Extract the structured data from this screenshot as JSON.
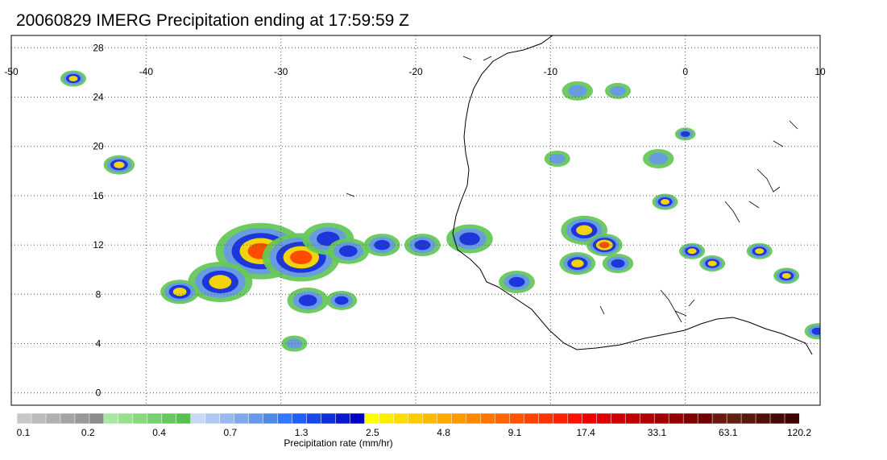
{
  "title": "20060829 IMERG Precipitation ending at 17:59:59 Z",
  "map": {
    "lon_range": [
      -50,
      10
    ],
    "lat_range": [
      -1,
      29
    ],
    "lon_ticks": [
      "-50",
      "-40",
      "-30",
      "-20",
      "-10",
      "0",
      "10"
    ],
    "lat_ticks": [
      "28",
      "24",
      "20",
      "16",
      "12",
      "8",
      "4",
      "0"
    ],
    "grid_style": "dotted",
    "coastline_color": "#000000",
    "rain_cells": [
      {
        "lon": -45.4,
        "lat": 25.5,
        "intensity": 4,
        "size": 1
      },
      {
        "lon": -42.0,
        "lat": 18.5,
        "intensity": 4,
        "size": 1.2
      },
      {
        "lon": -31.5,
        "lat": 11.5,
        "intensity": 5,
        "size": 3.5
      },
      {
        "lon": -28.5,
        "lat": 11.0,
        "intensity": 5,
        "size": 3
      },
      {
        "lon": -34.5,
        "lat": 9.0,
        "intensity": 4,
        "size": 2.5
      },
      {
        "lon": -37.5,
        "lat": 8.2,
        "intensity": 4,
        "size": 1.5
      },
      {
        "lon": -26.5,
        "lat": 12.5,
        "intensity": 3,
        "size": 2
      },
      {
        "lon": -25.0,
        "lat": 11.5,
        "intensity": 3,
        "size": 1.6
      },
      {
        "lon": -22.5,
        "lat": 12.0,
        "intensity": 3,
        "size": 1.4
      },
      {
        "lon": -19.5,
        "lat": 12.0,
        "intensity": 3,
        "size": 1.4
      },
      {
        "lon": -16.0,
        "lat": 12.5,
        "intensity": 3,
        "size": 1.8
      },
      {
        "lon": -28.0,
        "lat": 7.5,
        "intensity": 3,
        "size": 1.6
      },
      {
        "lon": -25.5,
        "lat": 7.5,
        "intensity": 3,
        "size": 1.2
      },
      {
        "lon": -29.0,
        "lat": 4.0,
        "intensity": 2,
        "size": 1.0
      },
      {
        "lon": -12.5,
        "lat": 9.0,
        "intensity": 3,
        "size": 1.4
      },
      {
        "lon": -7.5,
        "lat": 13.2,
        "intensity": 4,
        "size": 1.8
      },
      {
        "lon": -6.0,
        "lat": 12.0,
        "intensity": 5,
        "size": 1.4
      },
      {
        "lon": -8.0,
        "lat": 10.5,
        "intensity": 4,
        "size": 1.4
      },
      {
        "lon": -5.0,
        "lat": 10.5,
        "intensity": 3,
        "size": 1.2
      },
      {
        "lon": -1.5,
        "lat": 15.5,
        "intensity": 4,
        "size": 1.0
      },
      {
        "lon": 0.5,
        "lat": 11.5,
        "intensity": 4,
        "size": 1.0
      },
      {
        "lon": 2.0,
        "lat": 10.5,
        "intensity": 4,
        "size": 1.0
      },
      {
        "lon": 5.5,
        "lat": 11.5,
        "intensity": 4,
        "size": 1.0
      },
      {
        "lon": 7.5,
        "lat": 9.5,
        "intensity": 4,
        "size": 1.0
      },
      {
        "lon": 9.8,
        "lat": 5.0,
        "intensity": 3,
        "size": 1.0
      },
      {
        "lon": -9.5,
        "lat": 19.0,
        "intensity": 2,
        "size": 1.0
      },
      {
        "lon": -2.0,
        "lat": 19.0,
        "intensity": 2,
        "size": 1.2
      },
      {
        "lon": -8.0,
        "lat": 24.5,
        "intensity": 2,
        "size": 1.2
      },
      {
        "lon": -5.0,
        "lat": 24.5,
        "intensity": 2,
        "size": 1.0
      },
      {
        "lon": 0.0,
        "lat": 21.0,
        "intensity": 3,
        "size": 0.8
      }
    ]
  },
  "colorbar": {
    "title": "Precipitation rate (mm/hr)",
    "labels": [
      "0.1",
      "0.2",
      "0.4",
      "0.7",
      "1.3",
      "2.5",
      "4.8",
      "9.1",
      "17.4",
      "33.1",
      "63.1",
      "120.2"
    ],
    "colors": [
      "#c8c8c8",
      "#bcbcbc",
      "#b0b0b0",
      "#a4a4a4",
      "#989898",
      "#8c8c8c",
      "#a8e8a0",
      "#98e090",
      "#88d880",
      "#78d070",
      "#68c860",
      "#58c050",
      "#c8d8f8",
      "#b0c8f4",
      "#98b8f0",
      "#80a8ec",
      "#6898e8",
      "#5088e4",
      "#3078ff",
      "#2060f4",
      "#1848e8",
      "#1030dc",
      "#0818d0",
      "#0000c0",
      "#ffff00",
      "#ffee00",
      "#ffdd00",
      "#ffcc00",
      "#ffbb00",
      "#ffaa00",
      "#ff9900",
      "#ff8800",
      "#ff7700",
      "#ff6600",
      "#ff5500",
      "#ff4400",
      "#ff3300",
      "#ff2200",
      "#ff1100",
      "#f00000",
      "#e00000",
      "#d00000",
      "#c00000",
      "#b00000",
      "#a00000",
      "#900000",
      "#800000",
      "#700000",
      "#6a1810",
      "#602010",
      "#58180c",
      "#501008",
      "#480804",
      "#400000"
    ]
  }
}
